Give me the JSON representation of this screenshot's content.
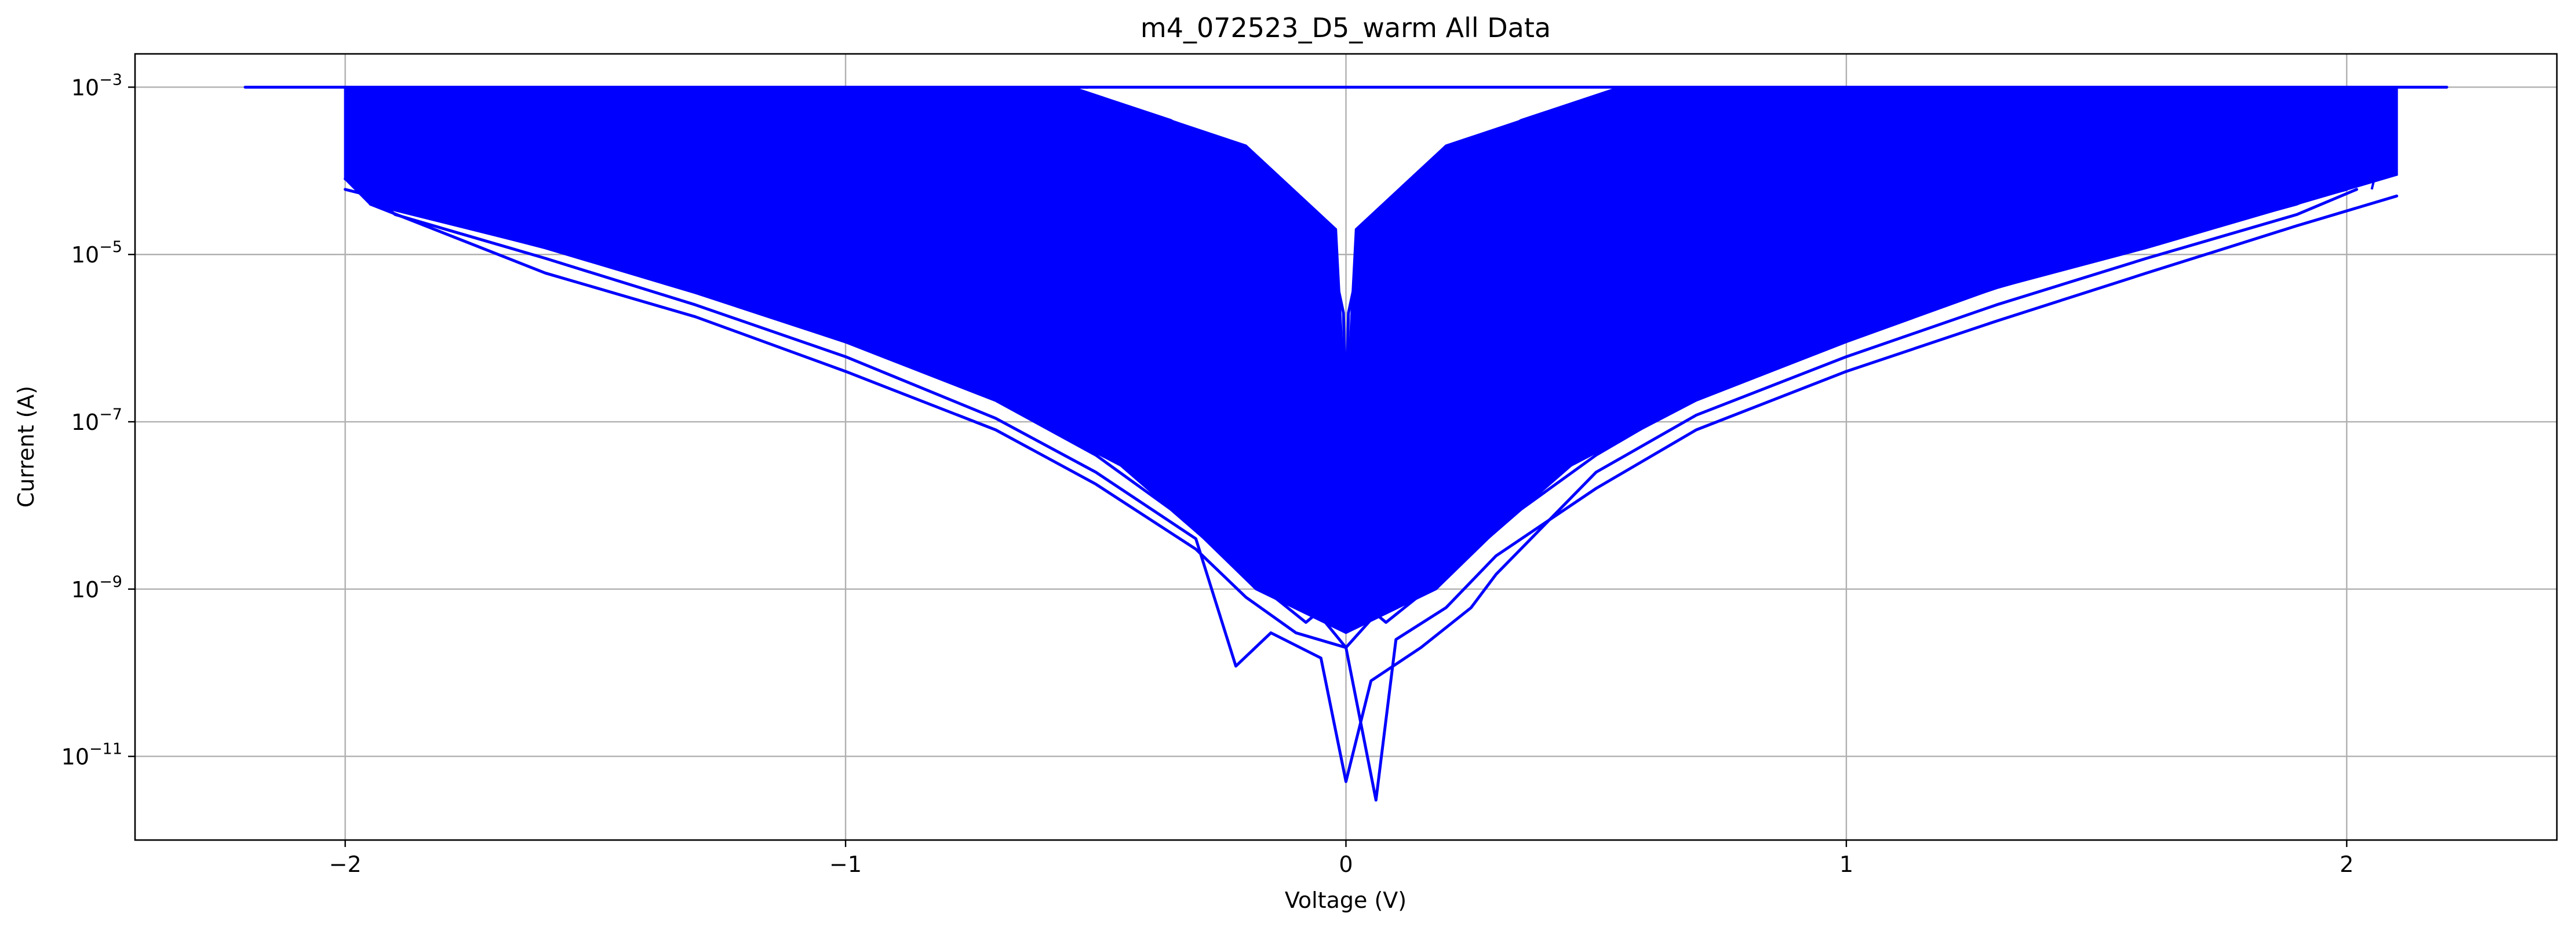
{
  "chart_data": {
    "type": "line",
    "title": "m4_072523_D5_warm All Data",
    "xlabel": "Voltage (V)",
    "ylabel": "Current (A)",
    "xlim": [
      -2.42,
      2.42
    ],
    "ylim": [
      1e-12,
      0.0025
    ],
    "yscale": "log",
    "grid": true,
    "xticks": [
      {
        "value": -2,
        "label": "−2"
      },
      {
        "value": -1,
        "label": "−1"
      },
      {
        "value": 0,
        "label": "0"
      },
      {
        "value": 1,
        "label": "1"
      },
      {
        "value": 2,
        "label": "2"
      }
    ],
    "yticks": [
      {
        "value": 1e-11,
        "base": "10",
        "exp": "−11"
      },
      {
        "value": 1e-09,
        "base": "10",
        "exp": "−9"
      },
      {
        "value": 1e-07,
        "base": "10",
        "exp": "−7"
      },
      {
        "value": 1e-05,
        "base": "10",
        "exp": "−5"
      },
      {
        "value": 0.001,
        "base": "10",
        "exp": "−3"
      }
    ],
    "series_color": "#0000ff",
    "compliance_current": 0.001,
    "series": [
      {
        "x": [
          -2.2,
          2.2
        ],
        "y": [
          0.001,
          0.001
        ]
      },
      {
        "x": [
          -2.0,
          -1.9,
          -1.6,
          -1.3,
          -1.0,
          -0.7,
          -0.5,
          -0.35,
          -0.2,
          -0.08,
          0.0,
          0.08,
          0.2,
          0.35,
          0.5,
          0.7,
          1.0,
          1.3,
          1.6,
          1.9,
          2.0
        ],
        "y": [
          8e-05,
          3.5e-05,
          1.2e-05,
          3.5e-06,
          9e-07,
          1.8e-07,
          4e-08,
          9e-09,
          1.5e-09,
          4e-10,
          1e-09,
          4e-10,
          1.5e-09,
          9e-09,
          4e-08,
          2e-07,
          1e-06,
          4e-06,
          1.3e-05,
          4e-05,
          7e-05
        ]
      },
      {
        "x": [
          -1.98,
          -1.9,
          -1.6,
          -1.3,
          -1.0,
          -0.7,
          -0.5,
          -0.3,
          -0.22,
          -0.15,
          -0.05,
          0.0,
          0.05,
          0.15,
          0.25,
          0.3,
          0.5,
          0.7,
          1.0,
          1.3,
          1.6,
          1.9,
          2.02
        ],
        "y": [
          7e-05,
          3e-05,
          9e-06,
          2.5e-06,
          6e-07,
          1.1e-07,
          2.5e-08,
          4e-09,
          1.2e-10,
          3e-10,
          1.5e-10,
          5e-12,
          8e-11,
          2e-10,
          6e-10,
          1.5e-09,
          2.5e-08,
          1.2e-07,
          6e-07,
          2.5e-06,
          9e-06,
          3e-05,
          6e-05
        ]
      },
      {
        "x": [
          -1.95,
          -1.6,
          -1.3,
          -1.0,
          -0.7,
          -0.5,
          -0.3,
          -0.2,
          -0.1,
          0.0,
          0.06,
          0.1,
          0.2,
          0.3,
          0.5,
          0.7,
          1.0,
          1.3,
          1.6,
          1.9,
          2.1
        ],
        "y": [
          4e-05,
          6e-06,
          1.8e-06,
          4e-07,
          8e-08,
          1.8e-08,
          3e-09,
          8e-10,
          3e-10,
          2e-10,
          3e-12,
          2.5e-10,
          6e-10,
          2.5e-09,
          1.6e-08,
          8e-08,
          4e-07,
          1.6e-06,
          6e-06,
          2.2e-05,
          5e-05
        ]
      },
      {
        "x": [
          -2.0,
          -1.6,
          -1.3,
          -1.0,
          -0.7,
          -0.5,
          -0.3,
          -0.15,
          0.0,
          0.15,
          0.3,
          0.5,
          0.7,
          1.0,
          1.3,
          1.6,
          2.0
        ],
        "y": [
          6e-05,
          1.5e-05,
          5e-06,
          1.5e-06,
          3.5e-07,
          9e-08,
          1.6e-08,
          2.5e-09,
          2e-10,
          2e-09,
          1.5e-08,
          8e-08,
          3e-07,
          1.5e-06,
          5e-06,
          1.5e-05,
          6e-05
        ]
      },
      {
        "x": [
          -1.7,
          -1.3,
          -1.0,
          -0.7,
          -0.4,
          -0.15,
          -0.02,
          0.0,
          0.02,
          0.15,
          0.4,
          0.7,
          1.0,
          1.3,
          1.7
        ],
        "y": [
          4e-05,
          1.5e-05,
          5e-06,
          1.6e-06,
          3e-07,
          4e-08,
          4e-09,
          1e-09,
          4e-09,
          4e-08,
          3e-07,
          1.6e-06,
          5e-06,
          1.5e-05,
          4e-05
        ]
      },
      {
        "x": [
          -1.3,
          -1.0,
          -0.7,
          -0.4,
          -0.15,
          -0.02,
          0.0,
          0.02,
          0.15,
          0.4,
          0.7,
          1.0,
          1.3
        ],
        "y": [
          5e-05,
          2e-05,
          8e-06,
          2e-06,
          3e-07,
          2e-08,
          5e-09,
          2e-08,
          3e-07,
          2e-06,
          8e-06,
          2e-05,
          5e-05
        ]
      },
      {
        "x": [
          -0.9,
          -0.6,
          -0.35,
          -0.15,
          -0.04,
          0.0,
          0.04,
          0.15,
          0.35,
          0.6,
          0.9
        ],
        "y": [
          0.0001,
          4e-05,
          1.2e-05,
          2e-06,
          1e-07,
          3e-08,
          1e-07,
          2e-06,
          1.2e-05,
          4e-05,
          0.0001
        ]
      },
      {
        "x": [
          -0.75,
          -0.5,
          -0.3,
          -0.15,
          -0.05,
          -0.01,
          0.0,
          0.01,
          0.05,
          0.15,
          0.3,
          0.5,
          0.75
        ],
        "y": [
          0.0005,
          0.0002,
          6e-05,
          1.8e-05,
          4e-06,
          5e-07,
          2e-07,
          5e-07,
          4e-06,
          1.8e-05,
          6e-05,
          0.0002,
          0.0005
        ]
      },
      {
        "x": [
          -0.55,
          -0.35,
          -0.2,
          -0.1,
          -0.03,
          -0.005,
          0.0,
          0.005,
          0.03,
          0.1,
          0.2,
          0.35,
          0.55
        ],
        "y": [
          0.001,
          0.0004,
          0.00012,
          4e-05,
          1e-05,
          2e-06,
          1.5e-07,
          2e-06,
          1e-05,
          4e-05,
          0.00012,
          0.0004,
          0.001
        ]
      }
    ]
  }
}
